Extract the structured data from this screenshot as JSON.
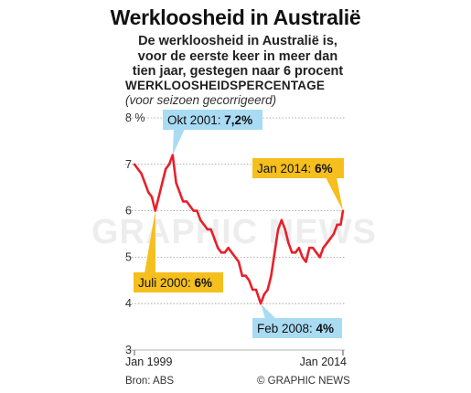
{
  "title": "Werkloosheid in Australië",
  "subtitle_lines": [
    "De werkloosheid in Australië is,",
    "voor de eerste keer in meer dan",
    "tien jaar, gestegen naar 6 procent"
  ],
  "ylabel": "Werkloosheidspercentage",
  "ylabel_display": "WERKLOOSHEIDSPERCENTAGE",
  "ynote": "(voor seizoen gecorrigeerd)",
  "source": "Bron: ABS",
  "credit": "© GRAPHIC NEWS",
  "watermark": "GRAPHIC NEWS",
  "colors": {
    "line": "#e8202a",
    "grid": "#9a9a9a",
    "callout_blue": "#a9dbf3",
    "callout_orange": "#f5bf1d",
    "text": "#222222"
  },
  "chart_data": {
    "type": "line",
    "title": "Werkloosheid in Australië",
    "ylabel": "Werkloosheidspercentage",
    "y_unit": "%",
    "ylim": [
      3,
      8
    ],
    "yticks": [
      3,
      4,
      5,
      6,
      7,
      8
    ],
    "ytick_labels": [
      "3",
      "4",
      "5",
      "6",
      "7",
      "8 %"
    ],
    "xlim": [
      "1999-01",
      "2014-01"
    ],
    "xtick_labels": [
      "Jan 1999",
      "Jan 2014"
    ],
    "xtick_values": [
      "1999-01",
      "2014-01"
    ],
    "grid": "horizontal",
    "series": [
      {
        "x": [
          "1999-01",
          "1999-04",
          "1999-07",
          "1999-10",
          "2000-01",
          "2000-04",
          "2000-07",
          "2000-10",
          "2001-01",
          "2001-04",
          "2001-07",
          "2001-10",
          "2002-01",
          "2002-04",
          "2002-07",
          "2002-10",
          "2003-01",
          "2003-04",
          "2003-07",
          "2003-10",
          "2004-01",
          "2004-04",
          "2004-07",
          "2004-10",
          "2005-01",
          "2005-04",
          "2005-07",
          "2005-10",
          "2006-01",
          "2006-04",
          "2006-07",
          "2006-10",
          "2007-01",
          "2007-04",
          "2007-07",
          "2007-10",
          "2008-02",
          "2008-05",
          "2008-08",
          "2008-11",
          "2009-02",
          "2009-05",
          "2009-08",
          "2009-11",
          "2010-02",
          "2010-05",
          "2010-08",
          "2010-11",
          "2011-02",
          "2011-05",
          "2011-08",
          "2011-11",
          "2012-02",
          "2012-05",
          "2012-08",
          "2012-11",
          "2013-02",
          "2013-05",
          "2013-08",
          "2013-11",
          "2014-01"
        ],
        "values": [
          7.0,
          6.9,
          6.8,
          6.6,
          6.4,
          6.3,
          6.0,
          6.3,
          6.6,
          6.9,
          7.0,
          7.2,
          6.6,
          6.4,
          6.2,
          6.2,
          6.1,
          6.0,
          6.0,
          5.8,
          5.7,
          5.6,
          5.6,
          5.4,
          5.2,
          5.1,
          5.1,
          5.2,
          5.1,
          5.0,
          4.9,
          4.6,
          4.6,
          4.5,
          4.3,
          4.3,
          4.0,
          4.2,
          4.3,
          4.6,
          5.1,
          5.6,
          5.8,
          5.6,
          5.3,
          5.1,
          5.1,
          5.2,
          5.0,
          4.9,
          5.2,
          5.2,
          5.1,
          5.0,
          5.2,
          5.3,
          5.4,
          5.5,
          5.7,
          5.7,
          6.0
        ]
      }
    ],
    "annotations": [
      {
        "text": "Okt 2001: ",
        "value_text": "7,2%",
        "x": "2001-10",
        "y": 7.2,
        "style": "blue"
      },
      {
        "text": "Jan 2014: ",
        "value_text": "6%",
        "x": "2014-01",
        "y": 6.0,
        "style": "orange"
      },
      {
        "text": "Juli 2000: ",
        "value_text": "6%",
        "x": "2000-07",
        "y": 6.0,
        "style": "orange"
      },
      {
        "text": "Feb 2008: ",
        "value_text": "4%",
        "x": "2008-02",
        "y": 4.0,
        "style": "blue"
      }
    ]
  }
}
